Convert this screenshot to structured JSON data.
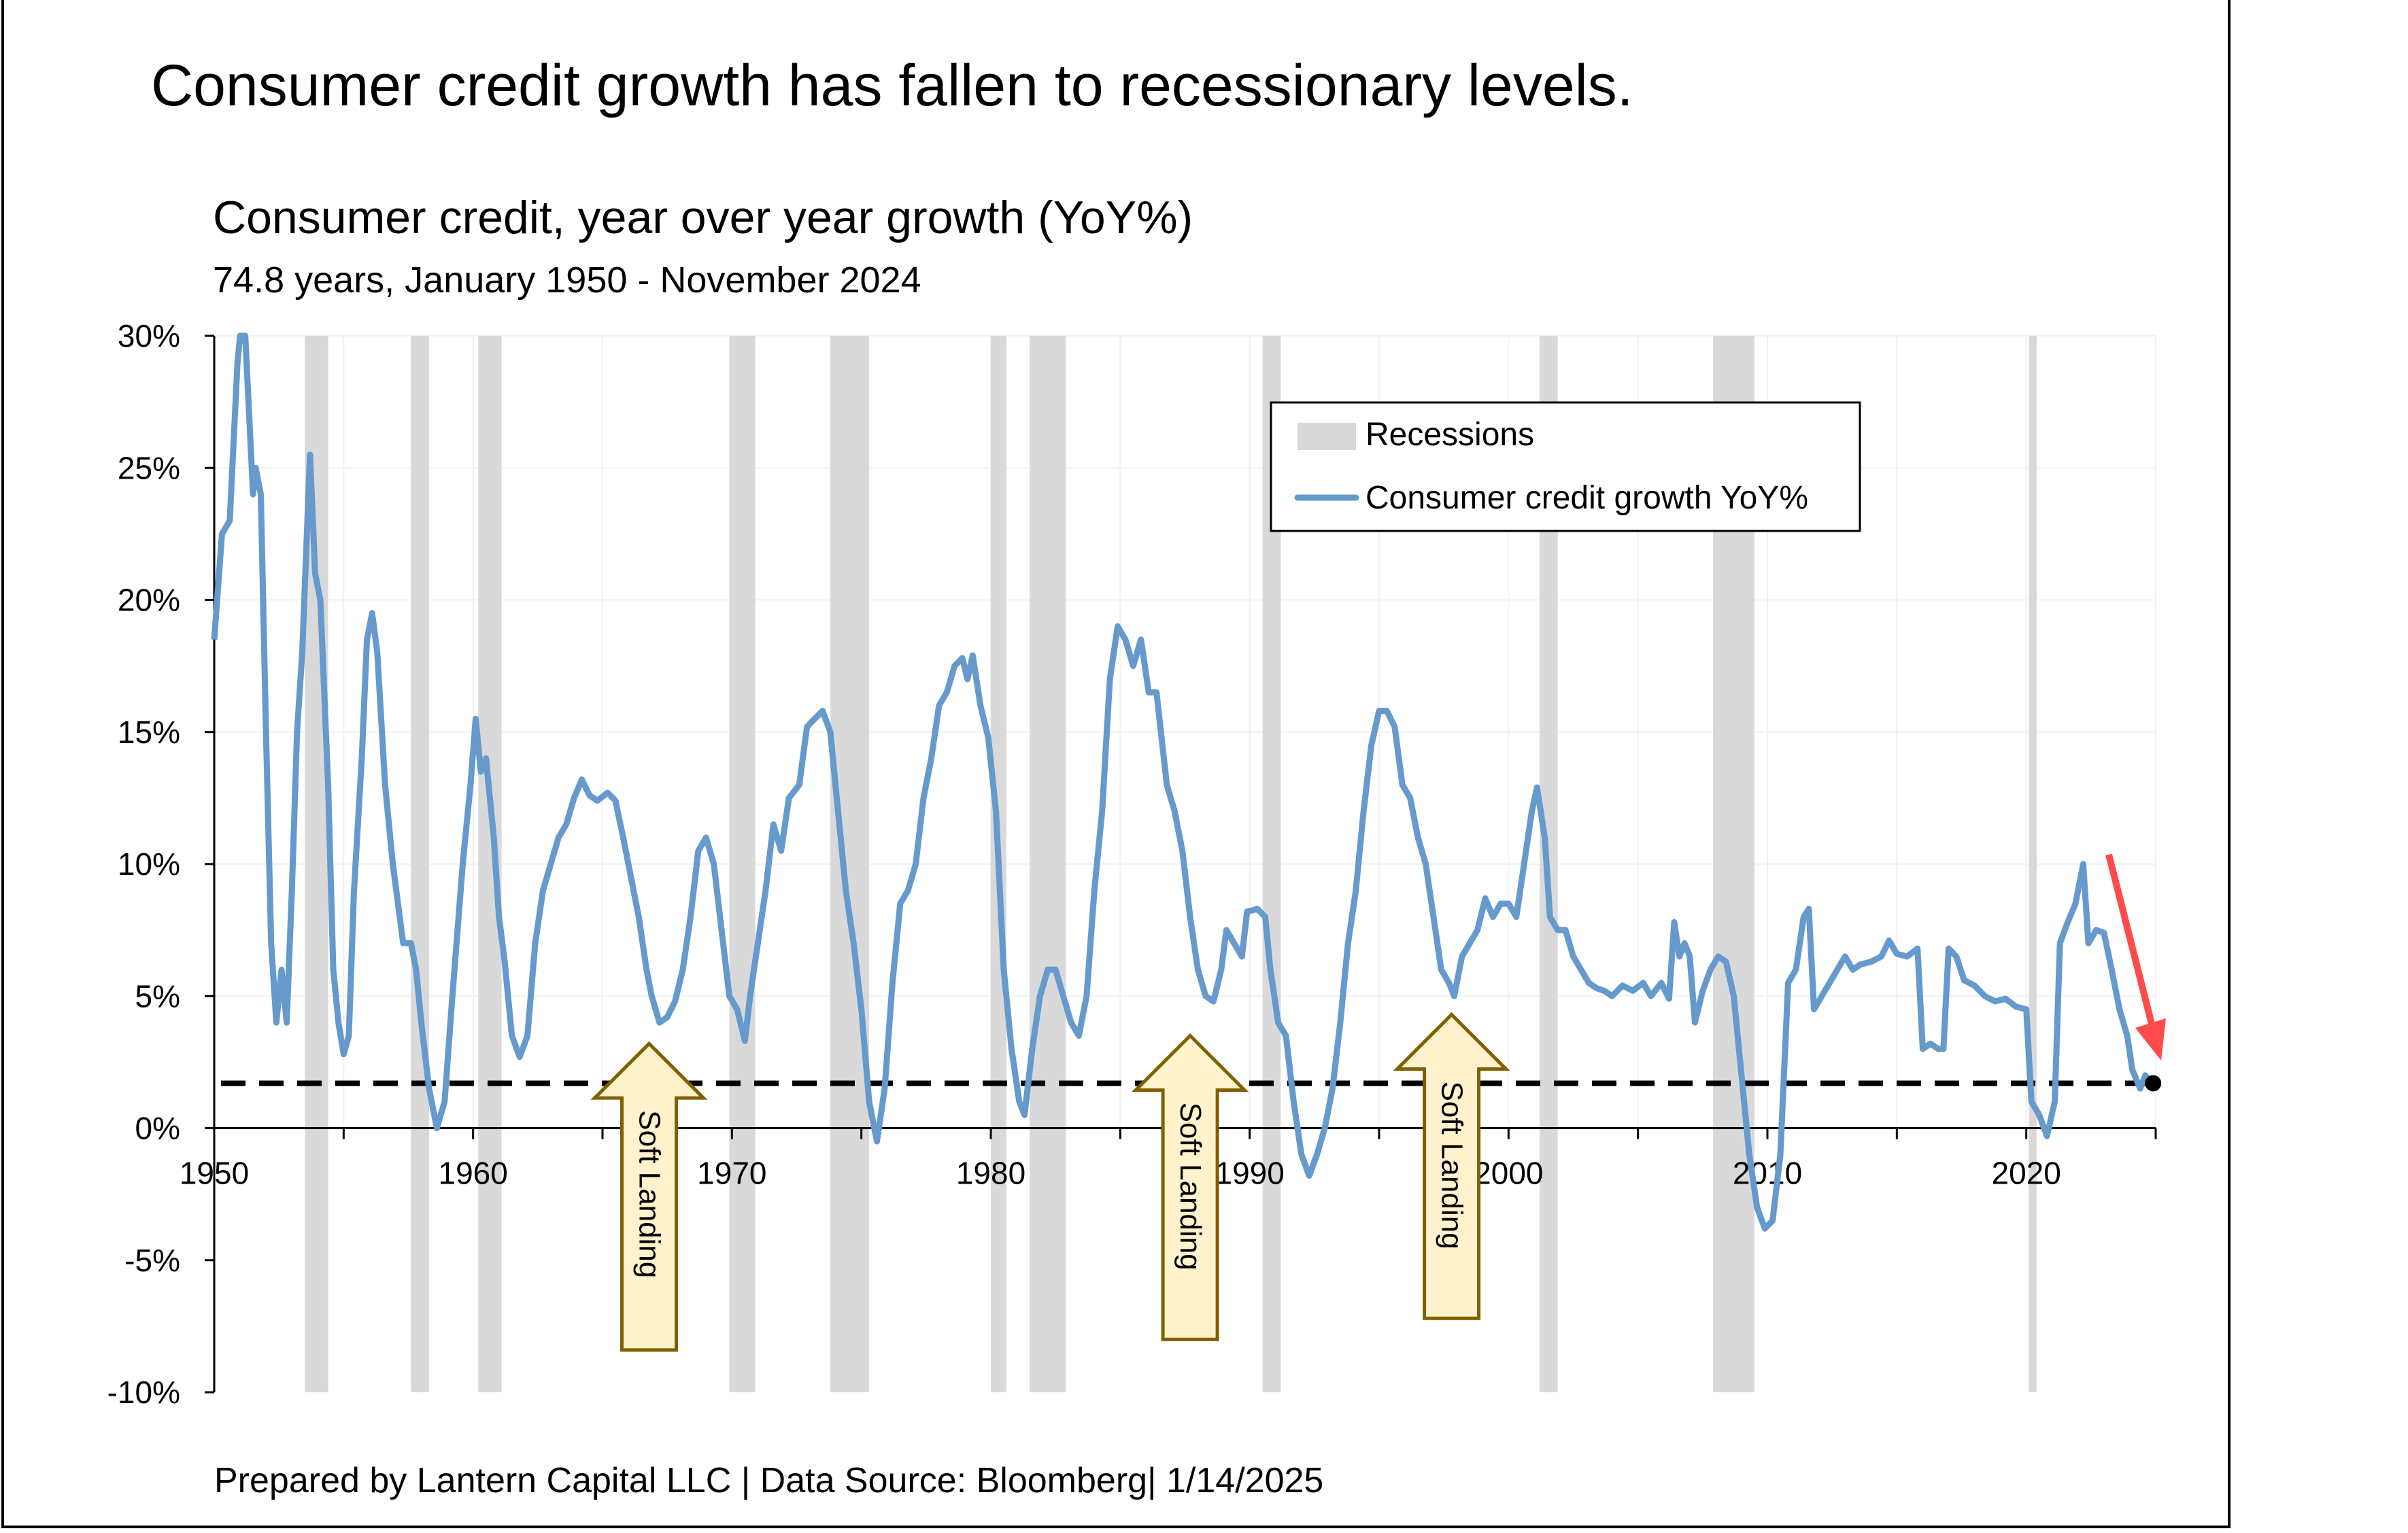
{
  "headline": "Consumer credit growth has fallen to recessionary levels.",
  "footer": "Prepared by Lantern Capital LLC | Data Source: Bloomberg| 1/14/2025",
  "annotations": {
    "soft_landing": [
      "Soft Landing",
      "Soft Landing",
      "Soft Landing"
    ]
  },
  "chart_data": {
    "type": "line",
    "title": "Consumer credit, year over year growth (YoY%)",
    "subtitle": "74.8 years, January 1950 - November 2024",
    "xlabel": "",
    "ylabel": "",
    "xlim": [
      1950,
      2025
    ],
    "ylim": [
      -10,
      30
    ],
    "x_ticks": [
      "1950",
      "1960",
      "1970",
      "1980",
      "1990",
      "2000",
      "2010",
      "2020"
    ],
    "y_ticks": [
      {
        "v": 30,
        "label": "30%"
      },
      {
        "v": 25,
        "label": "25%"
      },
      {
        "v": 20,
        "label": "20%"
      },
      {
        "v": 15,
        "label": "15%"
      },
      {
        "v": 10,
        "label": "10%"
      },
      {
        "v": 5,
        "label": "5%"
      },
      {
        "v": 0,
        "label": "0%"
      },
      {
        "v": -5,
        "label": "-5%"
      },
      {
        "v": -10,
        "label": "-10%"
      }
    ],
    "grid": true,
    "legend": {
      "placement": "top-right",
      "entries": [
        "Recessions",
        "Consumer credit growth YoY%"
      ]
    },
    "colors": {
      "series": "#6699CC",
      "recession": "#D9D9D9",
      "reference_line": "#000000",
      "trend_arrow": "#FF4B4B",
      "annotation_fill": "#FFF2CC",
      "annotation_border": "#7F6000"
    },
    "reference_line": 1.7,
    "recessions": [
      [
        1953.5,
        1954.4
      ],
      [
        1957.6,
        1958.3
      ],
      [
        1960.2,
        1961.1
      ],
      [
        1969.9,
        1970.9
      ],
      [
        1973.8,
        1975.3
      ],
      [
        1980.0,
        1980.6
      ],
      [
        1981.5,
        1982.9
      ],
      [
        1990.5,
        1991.2
      ],
      [
        2001.2,
        2001.9
      ],
      [
        2007.9,
        2009.5
      ],
      [
        2020.1,
        2020.4
      ]
    ],
    "series": [
      {
        "name": "Consumer credit growth YoY%",
        "points": [
          [
            1950.0,
            18.5
          ],
          [
            1950.3,
            22.5
          ],
          [
            1950.6,
            23
          ],
          [
            1950.9,
            29
          ],
          [
            1951.0,
            30
          ],
          [
            1951.2,
            30
          ],
          [
            1951.5,
            24
          ],
          [
            1951.6,
            25
          ],
          [
            1951.8,
            24
          ],
          [
            1952.0,
            15
          ],
          [
            1952.2,
            7
          ],
          [
            1952.4,
            4
          ],
          [
            1952.6,
            6
          ],
          [
            1952.8,
            4
          ],
          [
            1953.0,
            9
          ],
          [
            1953.2,
            15
          ],
          [
            1953.4,
            18
          ],
          [
            1953.6,
            23
          ],
          [
            1953.7,
            25.5
          ],
          [
            1953.9,
            21
          ],
          [
            1954.1,
            20
          ],
          [
            1954.4,
            13
          ],
          [
            1954.6,
            6
          ],
          [
            1954.8,
            4
          ],
          [
            1955.0,
            2.8
          ],
          [
            1955.2,
            3.5
          ],
          [
            1955.4,
            9
          ],
          [
            1955.7,
            14
          ],
          [
            1955.9,
            18.5
          ],
          [
            1956.1,
            19.5
          ],
          [
            1956.3,
            18
          ],
          [
            1956.6,
            13
          ],
          [
            1956.9,
            10
          ],
          [
            1957.1,
            8.5
          ],
          [
            1957.3,
            7
          ],
          [
            1957.6,
            7
          ],
          [
            1957.8,
            6
          ],
          [
            1958.0,
            4
          ],
          [
            1958.3,
            1.5
          ],
          [
            1958.6,
            0
          ],
          [
            1958.9,
            1
          ],
          [
            1959.2,
            5
          ],
          [
            1959.6,
            10
          ],
          [
            1959.9,
            13
          ],
          [
            1960.1,
            15.5
          ],
          [
            1960.3,
            13.5
          ],
          [
            1960.5,
            14
          ],
          [
            1960.8,
            11
          ],
          [
            1961.0,
            8
          ],
          [
            1961.2,
            6.5
          ],
          [
            1961.5,
            3.5
          ],
          [
            1961.8,
            2.7
          ],
          [
            1962.1,
            3.5
          ],
          [
            1962.4,
            7
          ],
          [
            1962.7,
            9
          ],
          [
            1963.0,
            10
          ],
          [
            1963.3,
            11
          ],
          [
            1963.6,
            11.5
          ],
          [
            1963.9,
            12.5
          ],
          [
            1964.2,
            13.2
          ],
          [
            1964.5,
            12.6
          ],
          [
            1964.8,
            12.4
          ],
          [
            1965.2,
            12.7
          ],
          [
            1965.5,
            12.4
          ],
          [
            1965.8,
            11
          ],
          [
            1966.1,
            9.5
          ],
          [
            1966.4,
            8
          ],
          [
            1966.7,
            6
          ],
          [
            1966.9,
            5
          ],
          [
            1967.2,
            4
          ],
          [
            1967.5,
            4.2
          ],
          [
            1967.8,
            4.8
          ],
          [
            1968.1,
            6
          ],
          [
            1968.4,
            8
          ],
          [
            1968.7,
            10.5
          ],
          [
            1969.0,
            11
          ],
          [
            1969.3,
            10
          ],
          [
            1969.6,
            7.5
          ],
          [
            1969.9,
            5
          ],
          [
            1970.2,
            4.5
          ],
          [
            1970.5,
            3.3
          ],
          [
            1970.7,
            5
          ],
          [
            1971.0,
            7
          ],
          [
            1971.3,
            9
          ],
          [
            1971.6,
            11.5
          ],
          [
            1971.9,
            10.5
          ],
          [
            1972.2,
            12.5
          ],
          [
            1972.6,
            13
          ],
          [
            1972.9,
            15.2
          ],
          [
            1973.2,
            15.5
          ],
          [
            1973.5,
            15.8
          ],
          [
            1973.8,
            15
          ],
          [
            1974.1,
            12
          ],
          [
            1974.4,
            9
          ],
          [
            1974.7,
            7
          ],
          [
            1975.0,
            4.5
          ],
          [
            1975.3,
            1
          ],
          [
            1975.6,
            -0.5
          ],
          [
            1975.9,
            1.5
          ],
          [
            1976.2,
            5.5
          ],
          [
            1976.5,
            8.5
          ],
          [
            1976.8,
            9
          ],
          [
            1977.1,
            10
          ],
          [
            1977.4,
            12.5
          ],
          [
            1977.7,
            14
          ],
          [
            1978.0,
            16
          ],
          [
            1978.3,
            16.5
          ],
          [
            1978.6,
            17.5
          ],
          [
            1978.9,
            17.8
          ],
          [
            1979.1,
            17.0
          ],
          [
            1979.3,
            17.9
          ],
          [
            1979.6,
            16
          ],
          [
            1979.9,
            14.8
          ],
          [
            1980.2,
            12
          ],
          [
            1980.5,
            6
          ],
          [
            1980.8,
            3
          ],
          [
            1981.1,
            1
          ],
          [
            1981.3,
            0.5
          ],
          [
            1981.6,
            3
          ],
          [
            1981.9,
            5
          ],
          [
            1982.2,
            6
          ],
          [
            1982.5,
            6
          ],
          [
            1982.8,
            5
          ],
          [
            1983.1,
            4
          ],
          [
            1983.4,
            3.5
          ],
          [
            1983.7,
            5
          ],
          [
            1984.0,
            9
          ],
          [
            1984.3,
            12
          ],
          [
            1984.6,
            17
          ],
          [
            1984.9,
            19
          ],
          [
            1985.2,
            18.5
          ],
          [
            1985.5,
            17.5
          ],
          [
            1985.8,
            18.5
          ],
          [
            1986.1,
            16.5
          ],
          [
            1986.4,
            16.5
          ],
          [
            1986.8,
            13
          ],
          [
            1987.1,
            12
          ],
          [
            1987.4,
            10.5
          ],
          [
            1987.7,
            8
          ],
          [
            1988.0,
            6
          ],
          [
            1988.3,
            5
          ],
          [
            1988.6,
            4.8
          ],
          [
            1988.9,
            6
          ],
          [
            1989.1,
            7.5
          ],
          [
            1989.4,
            7
          ],
          [
            1989.7,
            6.5
          ],
          [
            1989.9,
            8.2
          ],
          [
            1990.3,
            8.3
          ],
          [
            1990.6,
            8
          ],
          [
            1990.8,
            6
          ],
          [
            1991.1,
            4
          ],
          [
            1991.4,
            3.5
          ],
          [
            1991.7,
            1
          ],
          [
            1992.0,
            -1
          ],
          [
            1992.3,
            -1.8
          ],
          [
            1992.6,
            -1
          ],
          [
            1992.9,
            0
          ],
          [
            1993.2,
            1.5
          ],
          [
            1993.5,
            4
          ],
          [
            1993.8,
            7
          ],
          [
            1994.1,
            9
          ],
          [
            1994.4,
            12
          ],
          [
            1994.7,
            14.5
          ],
          [
            1995.0,
            15.8
          ],
          [
            1995.3,
            15.8
          ],
          [
            1995.6,
            15.2
          ],
          [
            1995.9,
            13
          ],
          [
            1996.2,
            12.5
          ],
          [
            1996.5,
            11
          ],
          [
            1996.8,
            10
          ],
          [
            1997.1,
            8
          ],
          [
            1997.4,
            6
          ],
          [
            1997.7,
            5.5
          ],
          [
            1997.9,
            5
          ],
          [
            1998.2,
            6.5
          ],
          [
            1998.5,
            7
          ],
          [
            1998.8,
            7.5
          ],
          [
            1999.1,
            8.7
          ],
          [
            1999.4,
            8
          ],
          [
            1999.7,
            8.5
          ],
          [
            2000.0,
            8.5
          ],
          [
            2000.3,
            8
          ],
          [
            2000.6,
            10
          ],
          [
            2000.9,
            12
          ],
          [
            2001.1,
            12.9
          ],
          [
            2001.4,
            11
          ],
          [
            2001.6,
            8
          ],
          [
            2001.9,
            7.5
          ],
          [
            2002.2,
            7.5
          ],
          [
            2002.5,
            6.5
          ],
          [
            2002.8,
            6
          ],
          [
            2003.1,
            5.5
          ],
          [
            2003.4,
            5.3
          ],
          [
            2003.7,
            5.2
          ],
          [
            2004.0,
            5
          ],
          [
            2004.4,
            5.4
          ],
          [
            2004.8,
            5.2
          ],
          [
            2005.2,
            5.5
          ],
          [
            2005.5,
            5
          ],
          [
            2005.9,
            5.5
          ],
          [
            2006.2,
            4.9
          ],
          [
            2006.4,
            7.8
          ],
          [
            2006.6,
            6.5
          ],
          [
            2006.8,
            7
          ],
          [
            2007.0,
            6.5
          ],
          [
            2007.2,
            4
          ],
          [
            2007.5,
            5.2
          ],
          [
            2007.8,
            6
          ],
          [
            2008.1,
            6.5
          ],
          [
            2008.4,
            6.3
          ],
          [
            2008.7,
            5
          ],
          [
            2009.0,
            2
          ],
          [
            2009.3,
            -1
          ],
          [
            2009.6,
            -3
          ],
          [
            2009.9,
            -3.8
          ],
          [
            2010.2,
            -3.5
          ],
          [
            2010.5,
            -1
          ],
          [
            2010.8,
            5.5
          ],
          [
            2011.1,
            6
          ],
          [
            2011.4,
            8
          ],
          [
            2011.6,
            8.3
          ],
          [
            2011.8,
            4.5
          ],
          [
            2012.1,
            5
          ],
          [
            2012.4,
            5.5
          ],
          [
            2012.7,
            6
          ],
          [
            2013.0,
            6.5
          ],
          [
            2013.3,
            6
          ],
          [
            2013.6,
            6.2
          ],
          [
            2014.0,
            6.3
          ],
          [
            2014.4,
            6.5
          ],
          [
            2014.7,
            7.1
          ],
          [
            2015.0,
            6.6
          ],
          [
            2015.4,
            6.5
          ],
          [
            2015.8,
            6.8
          ],
          [
            2016.0,
            3
          ],
          [
            2016.3,
            3.2
          ],
          [
            2016.6,
            3
          ],
          [
            2016.8,
            3
          ],
          [
            2017.0,
            6.8
          ],
          [
            2017.3,
            6.5
          ],
          [
            2017.6,
            5.6
          ],
          [
            2018.0,
            5.4
          ],
          [
            2018.4,
            5
          ],
          [
            2018.8,
            4.8
          ],
          [
            2019.2,
            4.9
          ],
          [
            2019.6,
            4.6
          ],
          [
            2020.0,
            4.5
          ],
          [
            2020.2,
            1
          ],
          [
            2020.5,
            0.5
          ],
          [
            2020.8,
            -0.3
          ],
          [
            2021.1,
            1
          ],
          [
            2021.3,
            7
          ],
          [
            2021.6,
            7.8
          ],
          [
            2021.9,
            8.5
          ],
          [
            2022.2,
            10
          ],
          [
            2022.4,
            7
          ],
          [
            2022.7,
            7.5
          ],
          [
            2023.0,
            7.4
          ],
          [
            2023.3,
            6
          ],
          [
            2023.6,
            4.5
          ],
          [
            2023.9,
            3.5
          ],
          [
            2024.1,
            2.2
          ],
          [
            2024.4,
            1.5
          ],
          [
            2024.6,
            2
          ],
          [
            2024.8,
            1.7
          ],
          [
            2024.9,
            1.7
          ]
        ]
      }
    ]
  }
}
